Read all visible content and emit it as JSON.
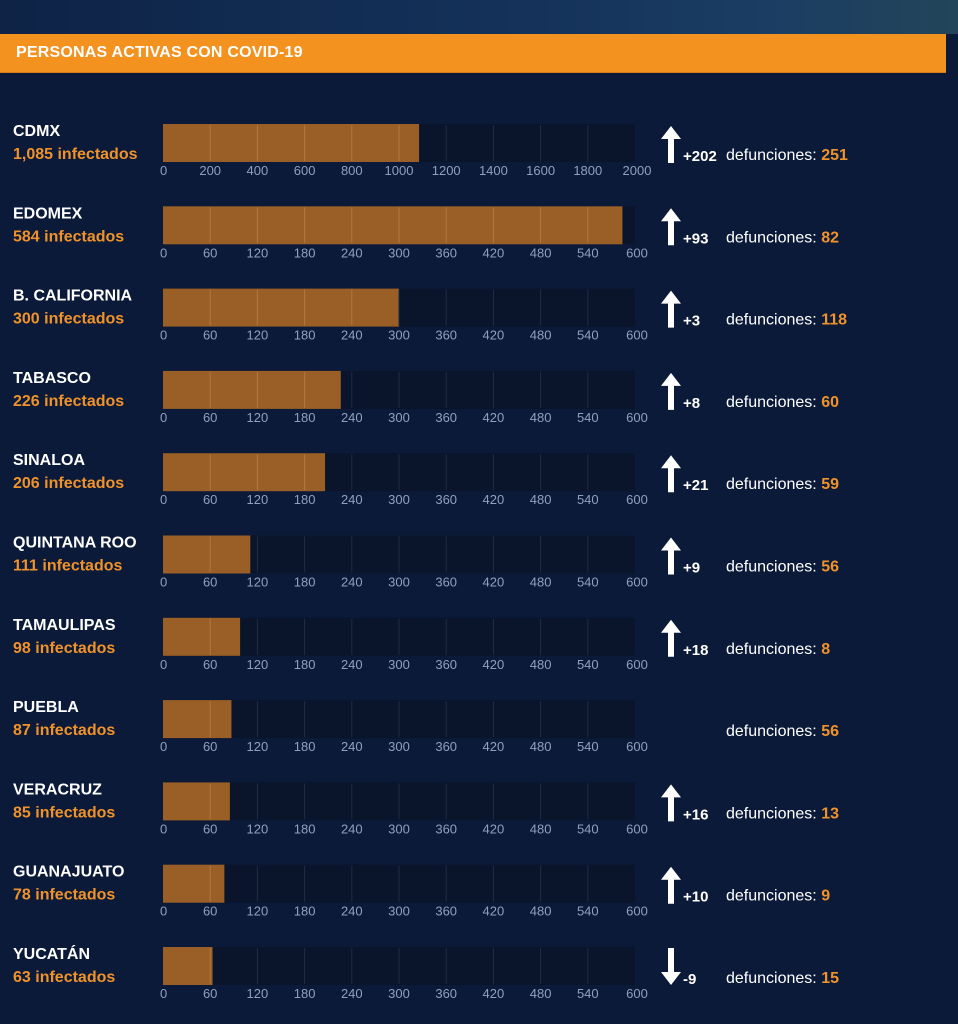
{
  "header": {
    "title": "PERSONAS ACTIVAS CON COVID-19"
  },
  "colors": {
    "background": "#0b1a38",
    "banner": "#f3921f",
    "bar_fill": "#9a5f27",
    "track": "#0a152c",
    "accent_text": "#f0922a"
  },
  "chart_data": {
    "type": "bar",
    "orientation": "horizontal",
    "deaths_label": "defunciones:",
    "rows": [
      {
        "name": "CDMX",
        "infected_label": "1,085 infectados",
        "value": 1085,
        "xlim": [
          0,
          2000
        ],
        "ticks": [
          "0",
          "200",
          "400",
          "600",
          "800",
          "1000",
          "1200",
          "1400",
          "1600",
          "1800",
          "2000"
        ],
        "trend": "up",
        "change": "+202",
        "deaths": "251"
      },
      {
        "name": "EDOMEX",
        "infected_label": "584 infectados",
        "value": 584,
        "xlim": [
          0,
          600
        ],
        "ticks": [
          "0",
          "60",
          "120",
          "180",
          "240",
          "300",
          "360",
          "420",
          "480",
          "540",
          "600"
        ],
        "trend": "up",
        "change": "+93",
        "deaths": "82"
      },
      {
        "name": "B. CALIFORNIA",
        "infected_label": "300 infectados",
        "value": 300,
        "xlim": [
          0,
          600
        ],
        "ticks": [
          "0",
          "60",
          "120",
          "180",
          "240",
          "300",
          "360",
          "420",
          "480",
          "540",
          "600"
        ],
        "trend": "up",
        "change": "+3",
        "deaths": "118"
      },
      {
        "name": "TABASCO",
        "infected_label": "226 infectados",
        "value": 226,
        "xlim": [
          0,
          600
        ],
        "ticks": [
          "0",
          "60",
          "120",
          "180",
          "240",
          "300",
          "360",
          "420",
          "480",
          "540",
          "600"
        ],
        "trend": "up",
        "change": "+8",
        "deaths": "60"
      },
      {
        "name": "SINALOA",
        "infected_label": "206 infectados",
        "value": 206,
        "xlim": [
          0,
          600
        ],
        "ticks": [
          "0",
          "60",
          "120",
          "180",
          "240",
          "300",
          "360",
          "420",
          "480",
          "540",
          "600"
        ],
        "trend": "up",
        "change": "+21",
        "deaths": "59"
      },
      {
        "name": "QUINTANA ROO",
        "infected_label": "111 infectados",
        "value": 111,
        "xlim": [
          0,
          600
        ],
        "ticks": [
          "0",
          "60",
          "120",
          "180",
          "240",
          "300",
          "360",
          "420",
          "480",
          "540",
          "600"
        ],
        "trend": "up",
        "change": "+9",
        "deaths": "56"
      },
      {
        "name": "TAMAULIPAS",
        "infected_label": "98 infectados",
        "value": 98,
        "xlim": [
          0,
          600
        ],
        "ticks": [
          "0",
          "60",
          "120",
          "180",
          "240",
          "300",
          "360",
          "420",
          "480",
          "540",
          "600"
        ],
        "trend": "up",
        "change": "+18",
        "deaths": "8"
      },
      {
        "name": "PUEBLA",
        "infected_label": "87 infectados",
        "value": 87,
        "xlim": [
          0,
          600
        ],
        "ticks": [
          "0",
          "60",
          "120",
          "180",
          "240",
          "300",
          "360",
          "420",
          "480",
          "540",
          "600"
        ],
        "trend": "none",
        "change": "",
        "deaths": "56"
      },
      {
        "name": "VERACRUZ",
        "infected_label": "85 infectados",
        "value": 85,
        "xlim": [
          0,
          600
        ],
        "ticks": [
          "0",
          "60",
          "120",
          "180",
          "240",
          "300",
          "360",
          "420",
          "480",
          "540",
          "600"
        ],
        "trend": "up",
        "change": "+16",
        "deaths": "13"
      },
      {
        "name": "GUANAJUATO",
        "infected_label": "78 infectados",
        "value": 78,
        "xlim": [
          0,
          600
        ],
        "ticks": [
          "0",
          "60",
          "120",
          "180",
          "240",
          "300",
          "360",
          "420",
          "480",
          "540",
          "600"
        ],
        "trend": "up",
        "change": "+10",
        "deaths": "9"
      },
      {
        "name": "YUCATÁN",
        "infected_label": "63 infectados",
        "value": 63,
        "xlim": [
          0,
          600
        ],
        "ticks": [
          "0",
          "60",
          "120",
          "180",
          "240",
          "300",
          "360",
          "420",
          "480",
          "540",
          "600"
        ],
        "trend": "down",
        "change": "-9",
        "deaths": "15"
      }
    ]
  }
}
